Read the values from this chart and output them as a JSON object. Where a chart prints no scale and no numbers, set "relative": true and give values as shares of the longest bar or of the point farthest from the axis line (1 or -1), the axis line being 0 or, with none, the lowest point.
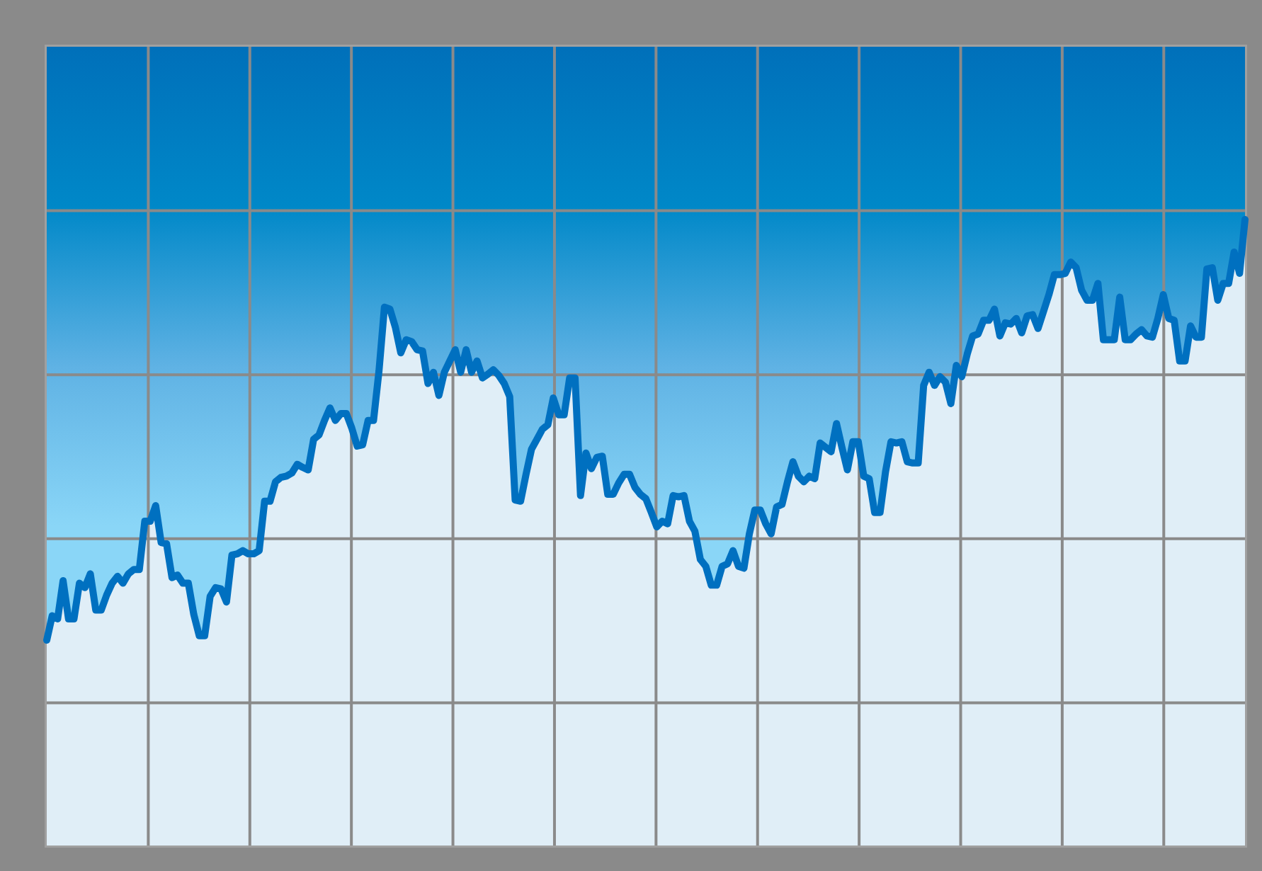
{
  "chart_data": {
    "type": "area",
    "relative": true,
    "grid": true,
    "line_style": "solid",
    "marker": "none",
    "categories": [
      null,
      null,
      null,
      null,
      null,
      null,
      null,
      null,
      null,
      null,
      null,
      null,
      null,
      null,
      null,
      null,
      null,
      null,
      null,
      null,
      null,
      null,
      null,
      null,
      null,
      null,
      null,
      null,
      null,
      null,
      null,
      null,
      null,
      null,
      null,
      null,
      null,
      null,
      null,
      null,
      null,
      null,
      null,
      null,
      null,
      null,
      null,
      null,
      null,
      null,
      null,
      null,
      null,
      null,
      null,
      null,
      null,
      null,
      null,
      null,
      null,
      null,
      null,
      null,
      null,
      null,
      null,
      null,
      null,
      null,
      null,
      null,
      null,
      null,
      null,
      null,
      null,
      null,
      null,
      null,
      null,
      null,
      null,
      null,
      null,
      null,
      null,
      null,
      null,
      null,
      null,
      null,
      null,
      null,
      null,
      null,
      null,
      null,
      null,
      null,
      null,
      null,
      null,
      null,
      null,
      null,
      null,
      null,
      null,
      null,
      null,
      null,
      null,
      null,
      null,
      null,
      null,
      null,
      null,
      null,
      null,
      null,
      null,
      null,
      null,
      null,
      null,
      null,
      null,
      null,
      null,
      null,
      null,
      null,
      null,
      null,
      null,
      null,
      null,
      null,
      null,
      null,
      null,
      null,
      null,
      null,
      null,
      null,
      null,
      null,
      null,
      null,
      null,
      null,
      null,
      null,
      null,
      null,
      null,
      null,
      null,
      null,
      null,
      null,
      null,
      null,
      null,
      null,
      null,
      null,
      null,
      null,
      null,
      null,
      null,
      null,
      null,
      null,
      null,
      null,
      null,
      null,
      null,
      null,
      null,
      null,
      null,
      null,
      null,
      null,
      null,
      null,
      null,
      null,
      null,
      null,
      null,
      null,
      null,
      null,
      null,
      null,
      null,
      null,
      null,
      null,
      null,
      null,
      null,
      null,
      null,
      null,
      null,
      null,
      null,
      null,
      null,
      null,
      null,
      null,
      null
    ],
    "series": [
      {
        "color": "#0070c0",
        "values": [
          0.328,
          0.367,
          0.362,
          0.423,
          0.362,
          0.362,
          0.419,
          0.412,
          0.434,
          0.376,
          0.376,
          0.4,
          0.419,
          0.43,
          0.419,
          0.434,
          0.441,
          0.441,
          0.518,
          0.518,
          0.543,
          0.484,
          0.482,
          0.428,
          0.432,
          0.419,
          0.419,
          0.369,
          0.335,
          0.335,
          0.398,
          0.412,
          0.41,
          0.389,
          0.464,
          0.466,
          0.471,
          0.466,
          0.466,
          0.471,
          0.55,
          0.55,
          0.581,
          0.588,
          0.59,
          0.595,
          0.609,
          0.604,
          0.6,
          0.649,
          0.656,
          0.679,
          0.699,
          0.679,
          0.69,
          0.69,
          0.667,
          0.638,
          0.64,
          0.679,
          0.679,
          0.758,
          0.86,
          0.857,
          0.828,
          0.787,
          0.808,
          0.805,
          0.792,
          0.79,
          0.738,
          0.756,
          0.719,
          0.756,
          0.774,
          0.792,
          0.756,
          0.792,
          0.756,
          0.774,
          0.747,
          0.753,
          0.76,
          0.751,
          0.738,
          0.717,
          0.552,
          0.55,
          0.593,
          0.633,
          0.649,
          0.665,
          0.672,
          0.715,
          0.688,
          0.688,
          0.747,
          0.747,
          0.559,
          0.627,
          0.602,
          0.62,
          0.622,
          0.561,
          0.561,
          0.579,
          0.593,
          0.593,
          0.572,
          0.561,
          0.554,
          0.532,
          0.509,
          0.518,
          0.514,
          0.559,
          0.557,
          0.559,
          0.518,
          0.502,
          0.457,
          0.446,
          0.416,
          0.416,
          0.446,
          0.45,
          0.471,
          0.446,
          0.443,
          0.498,
          0.536,
          0.536,
          0.514,
          0.498,
          0.541,
          0.545,
          0.581,
          0.613,
          0.59,
          0.581,
          0.59,
          0.586,
          0.643,
          0.636,
          0.629,
          0.674,
          0.636,
          0.6,
          0.645,
          0.645,
          0.59,
          0.586,
          0.532,
          0.532,
          0.597,
          0.645,
          0.643,
          0.645,
          0.613,
          0.611,
          0.611,
          0.735,
          0.756,
          0.735,
          0.749,
          0.74,
          0.706,
          0.767,
          0.749,
          0.785,
          0.814,
          0.817,
          0.839,
          0.839,
          0.857,
          0.814,
          0.835,
          0.833,
          0.842,
          0.819,
          0.846,
          0.848,
          0.826,
          0.853,
          0.88,
          0.912,
          0.912,
          0.914,
          0.932,
          0.923,
          0.887,
          0.871,
          0.871,
          0.898,
          0.808,
          0.808,
          0.808,
          0.876,
          0.808,
          0.808,
          0.817,
          0.824,
          0.814,
          0.812,
          0.842,
          0.88,
          0.842,
          0.839,
          0.774,
          0.774,
          0.83,
          0.812,
          0.812,
          0.921,
          0.923,
          0.871,
          0.898,
          0.898,
          0.948,
          0.914,
          1
        ]
      }
    ]
  }
}
